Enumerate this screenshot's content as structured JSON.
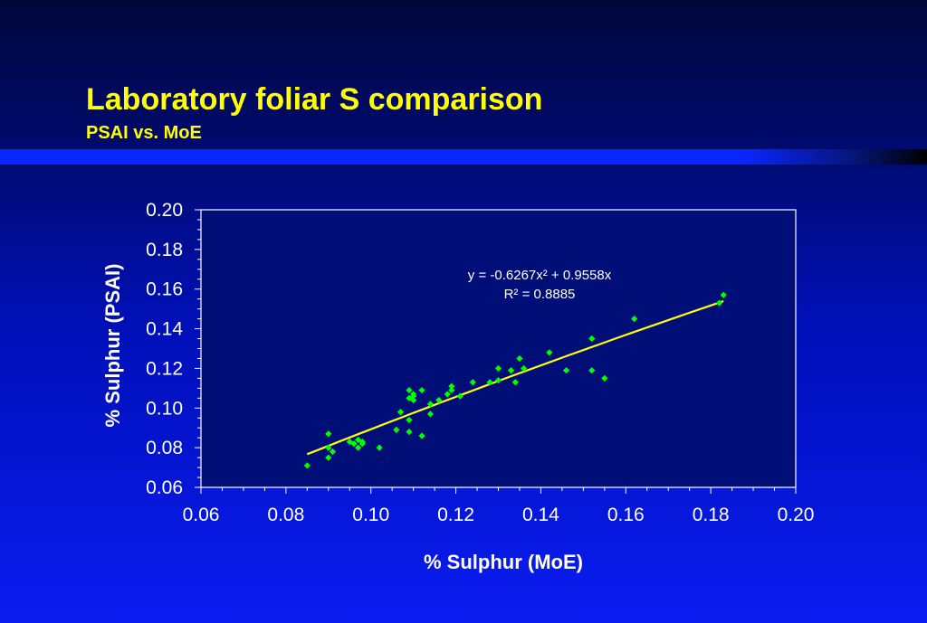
{
  "slide": {
    "title": "Laboratory foliar S comparison",
    "subtitle": "PSAI vs. MoE"
  },
  "colors": {
    "background_top": "#00063a",
    "background_bottom": "#0a1cf0",
    "title_text": "#ffff00",
    "plot_area": "#000e78",
    "points": "#00ff00",
    "trendline": "#ffff00",
    "axis_text": "#ffffff"
  },
  "chart_data": {
    "type": "scatter",
    "title": "",
    "xlabel": "% Sulphur (MoE)",
    "ylabel": "% Sulphur (PSAI)",
    "xlim": [
      0.06,
      0.2
    ],
    "ylim": [
      0.06,
      0.2
    ],
    "x_ticks": [
      "0.06",
      "0.08",
      "0.10",
      "0.12",
      "0.14",
      "0.16",
      "0.18",
      "0.20"
    ],
    "y_ticks": [
      "0.06",
      "0.08",
      "0.10",
      "0.12",
      "0.14",
      "0.16",
      "0.18",
      "0.20"
    ],
    "grid": false,
    "legend": "none",
    "series": [
      {
        "x": [
          0.085,
          0.09,
          0.09,
          0.09,
          0.091,
          0.095,
          0.096,
          0.097,
          0.097,
          0.098,
          0.098,
          0.102,
          0.106,
          0.107,
          0.109,
          0.109,
          0.109,
          0.109,
          0.11,
          0.11,
          0.11,
          0.112,
          0.112,
          0.114,
          0.114,
          0.116,
          0.118,
          0.119,
          0.119,
          0.121,
          0.124,
          0.128,
          0.13,
          0.13,
          0.133,
          0.134,
          0.135,
          0.136,
          0.142,
          0.146,
          0.152,
          0.152,
          0.155,
          0.162,
          0.182,
          0.183
        ],
        "y": [
          0.071,
          0.087,
          0.075,
          0.08,
          0.078,
          0.083,
          0.082,
          0.084,
          0.08,
          0.082,
          0.083,
          0.08,
          0.089,
          0.098,
          0.088,
          0.094,
          0.105,
          0.109,
          0.104,
          0.106,
          0.107,
          0.109,
          0.086,
          0.097,
          0.102,
          0.104,
          0.107,
          0.109,
          0.111,
          0.106,
          0.113,
          0.113,
          0.114,
          0.12,
          0.119,
          0.113,
          0.125,
          0.12,
          0.128,
          0.119,
          0.135,
          0.119,
          0.115,
          0.145,
          0.153,
          0.157
        ]
      }
    ],
    "trendline": {
      "type": "polynomial",
      "coefficients": {
        "a2": -0.6267,
        "a1": 0.9558,
        "a0": 0
      },
      "x_range": [
        0.085,
        0.183
      ],
      "equation_label": "y = -0.6267x² + 0.9558x",
      "r2_label": "R² = 0.8885"
    }
  }
}
